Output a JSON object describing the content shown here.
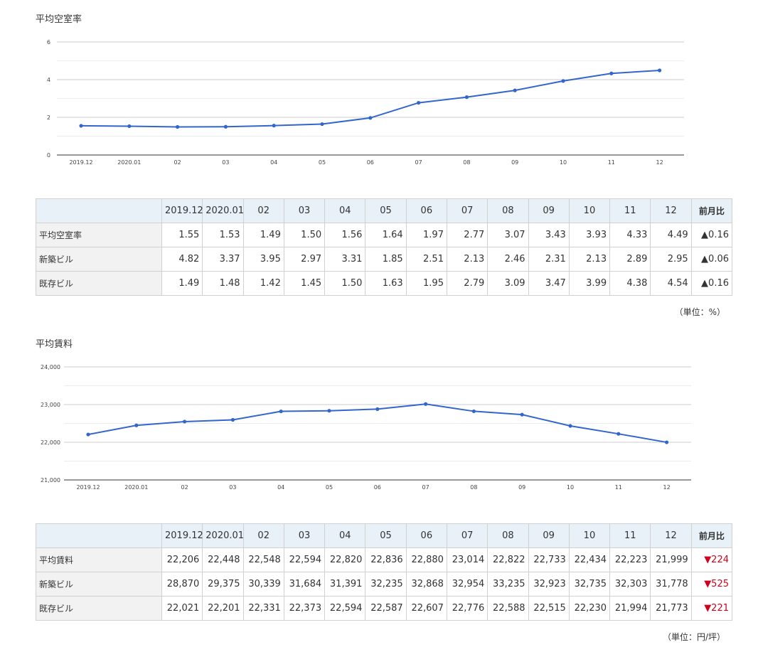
{
  "periods": [
    "2019.12",
    "2020.01",
    "02",
    "03",
    "04",
    "05",
    "06",
    "07",
    "08",
    "09",
    "10",
    "11",
    "12"
  ],
  "vacancy": {
    "title": "平均空室率",
    "change_header": "前月比",
    "unit_note": "（単位：%）",
    "rows": [
      {
        "label": "平均空室率",
        "values": [
          "1.55",
          "1.53",
          "1.49",
          "1.50",
          "1.56",
          "1.64",
          "1.97",
          "2.77",
          "3.07",
          "3.43",
          "3.93",
          "4.33",
          "4.49"
        ],
        "change": "▲0.16",
        "direction": "up"
      },
      {
        "label": "新築ビル",
        "values": [
          "4.82",
          "3.37",
          "3.95",
          "2.97",
          "3.31",
          "1.85",
          "2.51",
          "2.13",
          "2.46",
          "2.31",
          "2.13",
          "2.89",
          "2.95"
        ],
        "change": "▲0.06",
        "direction": "up"
      },
      {
        "label": "既存ビル",
        "values": [
          "1.49",
          "1.48",
          "1.42",
          "1.45",
          "1.50",
          "1.63",
          "1.95",
          "2.79",
          "3.09",
          "3.47",
          "3.99",
          "4.38",
          "4.54"
        ],
        "change": "▲0.16",
        "direction": "up"
      }
    ]
  },
  "rent": {
    "title": "平均賃料",
    "change_header": "前月比",
    "unit_note": "（単位：円/坪）",
    "rows": [
      {
        "label": "平均賃料",
        "values": [
          "22,206",
          "22,448",
          "22,548",
          "22,594",
          "22,820",
          "22,836",
          "22,880",
          "23,014",
          "22,822",
          "22,733",
          "22,434",
          "22,223",
          "21,999"
        ],
        "change": "▼224",
        "direction": "down"
      },
      {
        "label": "新築ビル",
        "values": [
          "28,870",
          "29,375",
          "30,339",
          "31,684",
          "31,391",
          "32,235",
          "32,868",
          "32,954",
          "33,235",
          "32,923",
          "32,735",
          "32,303",
          "31,778"
        ],
        "change": "▼525",
        "direction": "down"
      },
      {
        "label": "既存ビル",
        "values": [
          "22,021",
          "22,201",
          "22,331",
          "22,373",
          "22,594",
          "22,587",
          "22,607",
          "22,776",
          "22,588",
          "22,515",
          "22,230",
          "21,994",
          "21,773"
        ],
        "change": "▼221",
        "direction": "down"
      }
    ]
  },
  "chart_data": [
    {
      "type": "line",
      "title": "平均空室率",
      "categories": [
        "2019.12",
        "2020.01",
        "02",
        "03",
        "04",
        "05",
        "06",
        "07",
        "08",
        "09",
        "10",
        "11",
        "12"
      ],
      "series": [
        {
          "values": [
            1.55,
            1.53,
            1.49,
            1.5,
            1.56,
            1.64,
            1.97,
            2.77,
            3.07,
            3.43,
            3.93,
            4.33,
            4.49
          ]
        }
      ],
      "ylim": [
        0,
        6
      ],
      "yticks": [
        0,
        2,
        4,
        6
      ],
      "ytick_labels": [
        "0",
        "2",
        "4",
        "6"
      ],
      "grid": true,
      "line_color": "#3366cc"
    },
    {
      "type": "line",
      "title": "平均賃料",
      "categories": [
        "2019.12",
        "2020.01",
        "02",
        "03",
        "04",
        "05",
        "06",
        "07",
        "08",
        "09",
        "10",
        "11",
        "12"
      ],
      "series": [
        {
          "values": [
            22206,
            22448,
            22548,
            22594,
            22820,
            22836,
            22880,
            23014,
            22822,
            22733,
            22434,
            22223,
            21999
          ]
        }
      ],
      "ylim": [
        21000,
        24000
      ],
      "yticks": [
        21000,
        22000,
        23000,
        24000
      ],
      "ytick_labels": [
        "21,000",
        "22,000",
        "23,000",
        "24,000"
      ],
      "grid": true,
      "line_color": "#3366cc"
    }
  ]
}
